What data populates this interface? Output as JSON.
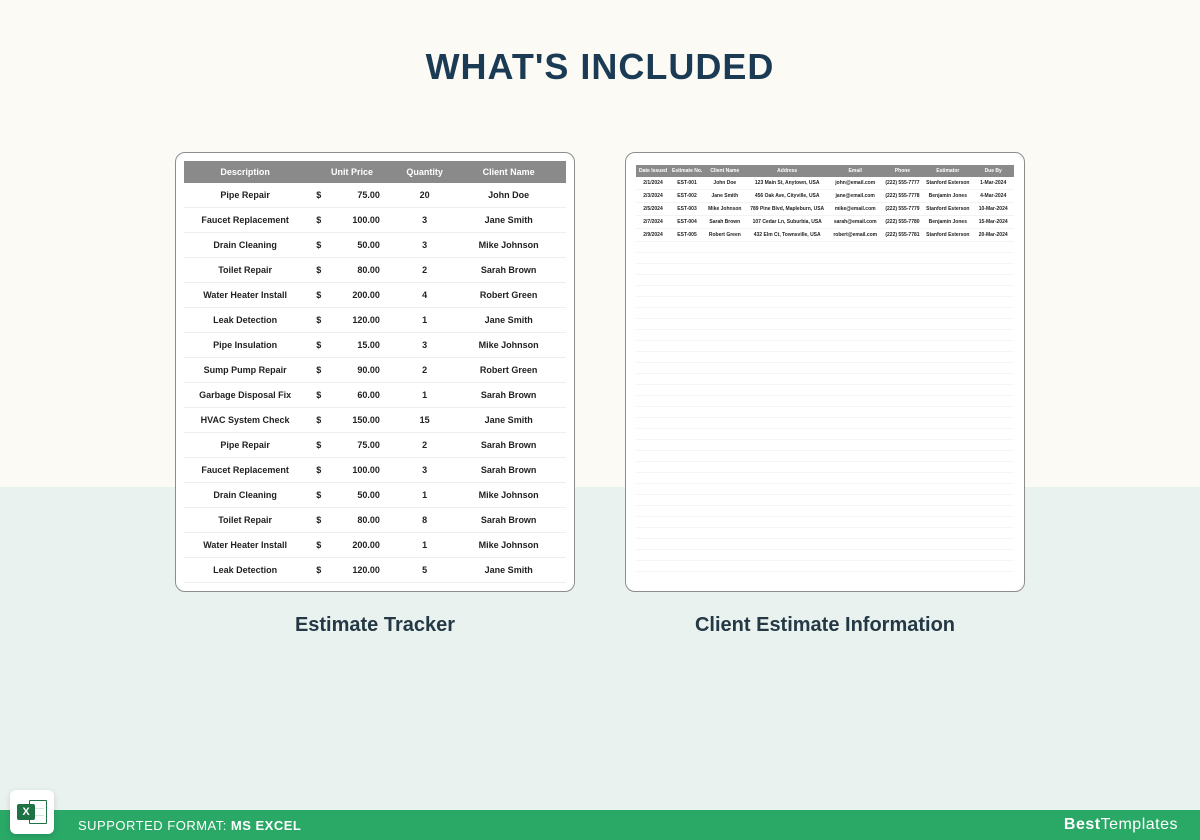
{
  "heading": "WHAT'S INCLUDED",
  "colors": {
    "heading": "#1b3a53",
    "page_top_bg": "#fbfaf5",
    "page_bottom_bg": "#eaf2ef",
    "card_border": "#8d8d8d",
    "table_header_bg": "#8a8a8a",
    "table_header_text": "#ffffff",
    "row_border": "#eeeeee",
    "footer_bg": "#2aa866",
    "excel_green": "#1f7244"
  },
  "cards": {
    "estimate_tracker": {
      "caption": "Estimate Tracker",
      "columns": [
        "Description",
        "Unit Price",
        "Quantity",
        "Client Name"
      ],
      "currency_symbol": "$",
      "rows": [
        {
          "desc": "Pipe Repair",
          "price": "75.00",
          "qty": "20",
          "client": "John Doe"
        },
        {
          "desc": "Faucet Replacement",
          "price": "100.00",
          "qty": "3",
          "client": "Jane Smith"
        },
        {
          "desc": "Drain Cleaning",
          "price": "50.00",
          "qty": "3",
          "client": "Mike Johnson"
        },
        {
          "desc": "Toilet Repair",
          "price": "80.00",
          "qty": "2",
          "client": "Sarah Brown"
        },
        {
          "desc": "Water Heater Install",
          "price": "200.00",
          "qty": "4",
          "client": "Robert Green"
        },
        {
          "desc": "Leak Detection",
          "price": "120.00",
          "qty": "1",
          "client": "Jane Smith"
        },
        {
          "desc": "Pipe Insulation",
          "price": "15.00",
          "qty": "3",
          "client": "Mike Johnson"
        },
        {
          "desc": "Sump Pump Repair",
          "price": "90.00",
          "qty": "2",
          "client": "Robert Green"
        },
        {
          "desc": "Garbage Disposal Fix",
          "price": "60.00",
          "qty": "1",
          "client": "Sarah Brown"
        },
        {
          "desc": "HVAC System Check",
          "price": "150.00",
          "qty": "15",
          "client": "Jane Smith"
        },
        {
          "desc": "Pipe Repair",
          "price": "75.00",
          "qty": "2",
          "client": "Sarah Brown"
        },
        {
          "desc": "Faucet Replacement",
          "price": "100.00",
          "qty": "3",
          "client": "Sarah Brown"
        },
        {
          "desc": "Drain Cleaning",
          "price": "50.00",
          "qty": "1",
          "client": "Mike Johnson"
        },
        {
          "desc": "Toilet Repair",
          "price": "80.00",
          "qty": "8",
          "client": "Sarah Brown"
        },
        {
          "desc": "Water Heater Install",
          "price": "200.00",
          "qty": "1",
          "client": "Mike Johnson"
        },
        {
          "desc": "Leak Detection",
          "price": "120.00",
          "qty": "5",
          "client": "Jane Smith"
        }
      ]
    },
    "client_info": {
      "caption": "Client Estimate Information",
      "columns": [
        "Date Issued",
        "Estimate No.",
        "Client Name",
        "Address",
        "Email",
        "Phone",
        "Estimator",
        "Due By"
      ],
      "col_widths_pct": [
        9,
        9,
        11,
        22,
        14,
        11,
        13,
        11
      ],
      "rows": [
        {
          "date": "2/1/2024",
          "est": "EST-001",
          "client": "John Doe",
          "addr": "123 Main St, Anytown, USA",
          "email": "john@email.com",
          "phone": "(222) 555-7777",
          "estimator": "Stanford Esterson",
          "due": "1-Mar-2024"
        },
        {
          "date": "2/3/2024",
          "est": "EST-002",
          "client": "Jane Smith",
          "addr": "456 Oak Ave, Cityville, USA",
          "email": "jane@email.com",
          "phone": "(222) 555-7778",
          "estimator": "Benjamin Jones",
          "due": "4-Mar-2024"
        },
        {
          "date": "2/5/2024",
          "est": "EST-003",
          "client": "Mike Johnson",
          "addr": "789 Pine Blvd, Mapleburn, USA",
          "email": "mike@email.com",
          "phone": "(222) 555-7779",
          "estimator": "Stanford Esterson",
          "due": "10-Mar-2024"
        },
        {
          "date": "2/7/2024",
          "est": "EST-004",
          "client": "Sarah Brown",
          "addr": "107 Cedar Ln, Suburbia, USA",
          "email": "sarah@email.com",
          "phone": "(222) 555-7780",
          "estimator": "Benjamin Jones",
          "due": "15-Mar-2024"
        },
        {
          "date": "2/9/2024",
          "est": "EST-005",
          "client": "Robert Green",
          "addr": "432 Elm Ct, Townsville, USA",
          "email": "robert@email.com",
          "phone": "(222) 555-7781",
          "estimator": "Stanford Esterson",
          "due": "20-Mar-2024"
        }
      ],
      "blank_row_count": 30
    }
  },
  "footer": {
    "format_label": "SUPPORTED FORMAT:",
    "format_value": "MS EXCEL",
    "brand_bold": "Best",
    "brand_light": "Templates",
    "excel_letter": "X"
  }
}
